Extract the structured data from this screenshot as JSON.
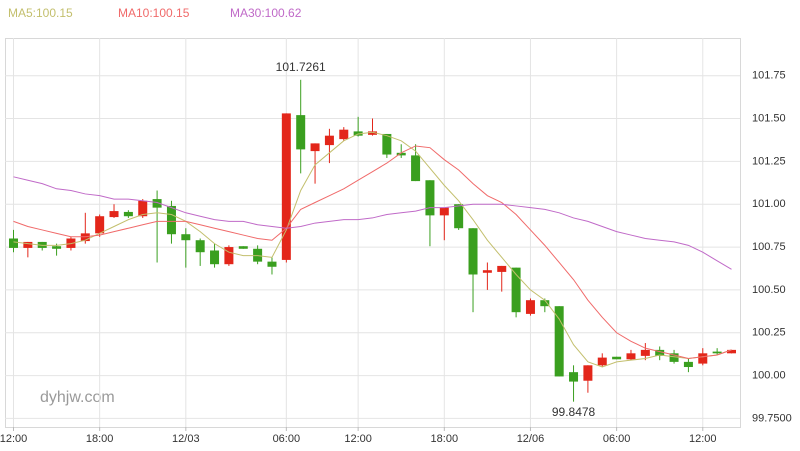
{
  "chart_data": {
    "type": "candlestick",
    "watermark": "dyhjw.com",
    "categories": [
      "12:00",
      null,
      null,
      null,
      null,
      null,
      "18:00",
      null,
      null,
      null,
      null,
      null,
      "12/03",
      null,
      null,
      null,
      null,
      null,
      null,
      "06:00",
      null,
      null,
      null,
      null,
      "12:00",
      null,
      null,
      null,
      null,
      null,
      "18:00",
      null,
      null,
      null,
      null,
      null,
      "12/06",
      null,
      null,
      null,
      null,
      null,
      "06:00",
      null,
      null,
      null,
      null,
      null,
      "12:00",
      null,
      null
    ],
    "open": [
      100.8,
      100.745,
      100.78,
      100.755,
      100.745,
      100.785,
      100.83,
      100.925,
      100.955,
      100.93,
      101.03,
      100.99,
      100.825,
      100.79,
      100.73,
      100.65,
      100.755,
      100.74,
      100.665,
      100.675,
      101.52,
      101.31,
      101.345,
      101.38,
      101.425,
      101.405,
      101.41,
      101.3,
      101.285,
      101.14,
      100.935,
      101.0,
      100.86,
      100.6,
      100.605,
      100.63,
      100.36,
      100.44,
      100.405,
      100.02,
      99.97,
      100.06,
      100.11,
      100.095,
      100.115,
      100.15,
      100.13,
      100.08,
      100.07,
      100.14,
      100.13
    ],
    "high": [
      100.85,
      100.78,
      100.78,
      100.77,
      100.81,
      100.95,
      100.94,
      101.0,
      100.965,
      101.03,
      101.08,
      101.02,
      100.86,
      100.8,
      100.77,
      100.76,
      100.755,
      100.76,
      100.69,
      101.53,
      101.7261,
      101.355,
      101.44,
      101.45,
      101.51,
      101.5,
      101.41,
      101.35,
      101.35,
      101.14,
      100.98,
      101.0,
      100.86,
      100.66,
      100.64,
      100.63,
      100.45,
      100.45,
      100.405,
      100.06,
      100.06,
      100.13,
      100.11,
      100.15,
      100.19,
      100.17,
      100.15,
      100.1,
      100.16,
      100.16,
      100.15
    ],
    "low": [
      100.72,
      100.69,
      100.73,
      100.7,
      100.73,
      100.77,
      100.81,
      100.92,
      100.92,
      100.92,
      100.66,
      100.77,
      100.63,
      100.64,
      100.63,
      100.64,
      100.74,
      100.65,
      100.59,
      100.66,
      101.18,
      101.12,
      101.24,
      101.37,
      101.395,
      101.4,
      101.27,
      101.27,
      101.135,
      100.755,
      100.79,
      100.85,
      100.37,
      100.5,
      100.49,
      100.34,
      100.35,
      100.37,
      99.995,
      99.8478,
      99.9,
      100.05,
      100.095,
      100.09,
      100.09,
      100.09,
      100.07,
      100.02,
      100.06,
      100.12,
      100.13
    ],
    "close": [
      100.745,
      100.78,
      100.745,
      100.74,
      100.8,
      100.83,
      100.93,
      100.96,
      100.93,
      101.02,
      100.98,
      100.825,
      100.79,
      100.72,
      100.65,
      100.75,
      100.74,
      100.665,
      100.635,
      101.53,
      101.32,
      101.355,
      101.4,
      101.435,
      101.4,
      101.425,
      101.29,
      101.285,
      101.135,
      100.935,
      100.98,
      100.86,
      100.59,
      100.615,
      100.64,
      100.37,
      100.44,
      100.405,
      99.995,
      99.965,
      100.06,
      100.105,
      100.095,
      100.13,
      100.15,
      100.115,
      100.08,
      100.05,
      100.13,
      100.13,
      100.15
    ],
    "high_labels": [
      null,
      null,
      null,
      null,
      null,
      null,
      null,
      null,
      null,
      null,
      null,
      null,
      null,
      null,
      null,
      null,
      null,
      null,
      null,
      null,
      "101.7261",
      null,
      null,
      null,
      null,
      null,
      null,
      null,
      null,
      null,
      null,
      null,
      null,
      null,
      null,
      null,
      null,
      null,
      null,
      null,
      null,
      null,
      null,
      null,
      null,
      null,
      null,
      null,
      null,
      null,
      null
    ],
    "low_labels": [
      null,
      null,
      null,
      null,
      null,
      null,
      null,
      null,
      null,
      null,
      null,
      null,
      null,
      null,
      null,
      null,
      null,
      null,
      null,
      null,
      null,
      null,
      null,
      null,
      null,
      null,
      null,
      null,
      null,
      null,
      null,
      null,
      null,
      null,
      null,
      null,
      null,
      null,
      null,
      "99.8478",
      null,
      null,
      null,
      null,
      null,
      null,
      null,
      null,
      null,
      null,
      null
    ],
    "up_color": "#e3261a",
    "down_color": "#3a9f1f",
    "series": [
      {
        "name": "MA5:100.15",
        "color": "#c3bf6d",
        "values": [
          100.78,
          100.77,
          100.76,
          100.76,
          100.77,
          100.79,
          100.83,
          100.87,
          100.91,
          100.94,
          100.95,
          100.94,
          100.9,
          100.84,
          100.77,
          100.72,
          100.7,
          100.7,
          100.69,
          100.85,
          101.08,
          101.23,
          101.3,
          101.37,
          101.41,
          101.42,
          101.4,
          101.37,
          101.31,
          101.21,
          101.11,
          101.02,
          100.91,
          100.79,
          100.69,
          100.59,
          100.5,
          100.44,
          100.33,
          100.18,
          100.08,
          100.05,
          100.08,
          100.09,
          100.1,
          100.12,
          100.11,
          100.1,
          100.11,
          100.12,
          100.15
        ]
      },
      {
        "name": "MA10:100.15",
        "color": "#f06a6a",
        "values": [
          100.9,
          100.87,
          100.85,
          100.83,
          100.81,
          100.81,
          100.82,
          100.84,
          100.86,
          100.88,
          100.9,
          100.9,
          100.9,
          100.88,
          100.86,
          100.84,
          100.82,
          100.8,
          100.79,
          100.86,
          100.97,
          101.01,
          101.05,
          101.09,
          101.14,
          101.19,
          101.24,
          101.3,
          101.34,
          101.33,
          101.26,
          101.2,
          101.12,
          101.05,
          101.01,
          100.94,
          100.85,
          100.76,
          100.66,
          100.56,
          100.44,
          100.34,
          100.25,
          100.2,
          100.16,
          100.14,
          100.12,
          100.1,
          100.11,
          100.12,
          100.15
        ]
      },
      {
        "name": "MA30:100.62",
        "color": "#c06ac8",
        "values": [
          101.16,
          101.14,
          101.12,
          101.09,
          101.08,
          101.06,
          101.05,
          101.03,
          101.03,
          101.02,
          101.01,
          100.98,
          100.95,
          100.93,
          100.91,
          100.9,
          100.9,
          100.88,
          100.87,
          100.86,
          100.87,
          100.89,
          100.9,
          100.91,
          100.91,
          100.92,
          100.94,
          100.95,
          100.96,
          100.98,
          100.98,
          100.99,
          101.0,
          101.0,
          101.0,
          100.99,
          100.98,
          100.97,
          100.95,
          100.92,
          100.9,
          100.87,
          100.84,
          100.82,
          100.8,
          100.79,
          100.78,
          100.76,
          100.72,
          100.67,
          100.62
        ]
      }
    ],
    "ylim": [
      99.7,
      101.97
    ],
    "yticks": [
      {
        "value": 99.75,
        "label": "99.7500"
      },
      {
        "value": 100.0,
        "label": "100.00"
      },
      {
        "value": 100.25,
        "label": "100.25"
      },
      {
        "value": 100.5,
        "label": "100.50"
      },
      {
        "value": 100.75,
        "label": "100.75"
      },
      {
        "value": 101.0,
        "label": "101.00"
      },
      {
        "value": 101.25,
        "label": "101.25"
      },
      {
        "value": 101.5,
        "label": "101.50"
      },
      {
        "value": 101.75,
        "label": "101.75"
      }
    ],
    "grid": true
  }
}
